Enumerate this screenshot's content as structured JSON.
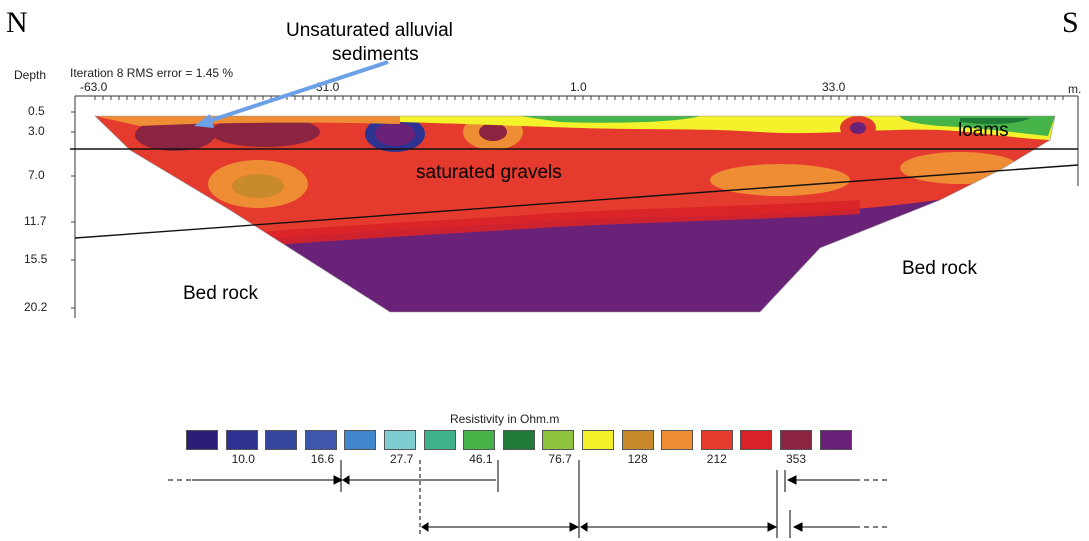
{
  "compass": {
    "north": "N",
    "south": "S"
  },
  "header": {
    "depth_label": "Depth",
    "iteration_label": "Iteration 8 RMS error = 1.45 %"
  },
  "axes": {
    "x_ticks": [
      "-63.0",
      "-31.0",
      "1.0",
      "33.0"
    ],
    "x_unit": "m.",
    "depth_ticks": [
      "0.5",
      "3.0",
      "7.0",
      "11.7",
      "15.5",
      "20.2"
    ]
  },
  "annotations": {
    "unsaturated": "Unsaturated alluvial sediments",
    "unsaturated_line1": "Unsaturated alluvial",
    "unsaturated_line2": "sediments",
    "loams": "loams",
    "saturated_gravels": "saturated gravels",
    "bed_rock_left": "Bed rock",
    "bed_rock_right": "Bed rock"
  },
  "legend": {
    "title": "Resistivity in Ohm.m",
    "colors": [
      "#2b1e78",
      "#2e3392",
      "#35469f",
      "#3e56ad",
      "#3f86cc",
      "#7ecdd0",
      "#3fb28a",
      "#46b449",
      "#1f7b36",
      "#8fc43f",
      "#f4f22a",
      "#c98a2c",
      "#ee8d34",
      "#e53b2f",
      "#d92227",
      "#8a2440",
      "#6a2278"
    ],
    "values": [
      "10.0",
      "16.6",
      "27.7",
      "46.1",
      "76.7",
      "128",
      "212",
      "353"
    ]
  },
  "colors": {
    "arrow": "#6b9fe8",
    "deep": "#6a2278",
    "mid": "#e53b2f",
    "shallow": "#ee8d34"
  }
}
